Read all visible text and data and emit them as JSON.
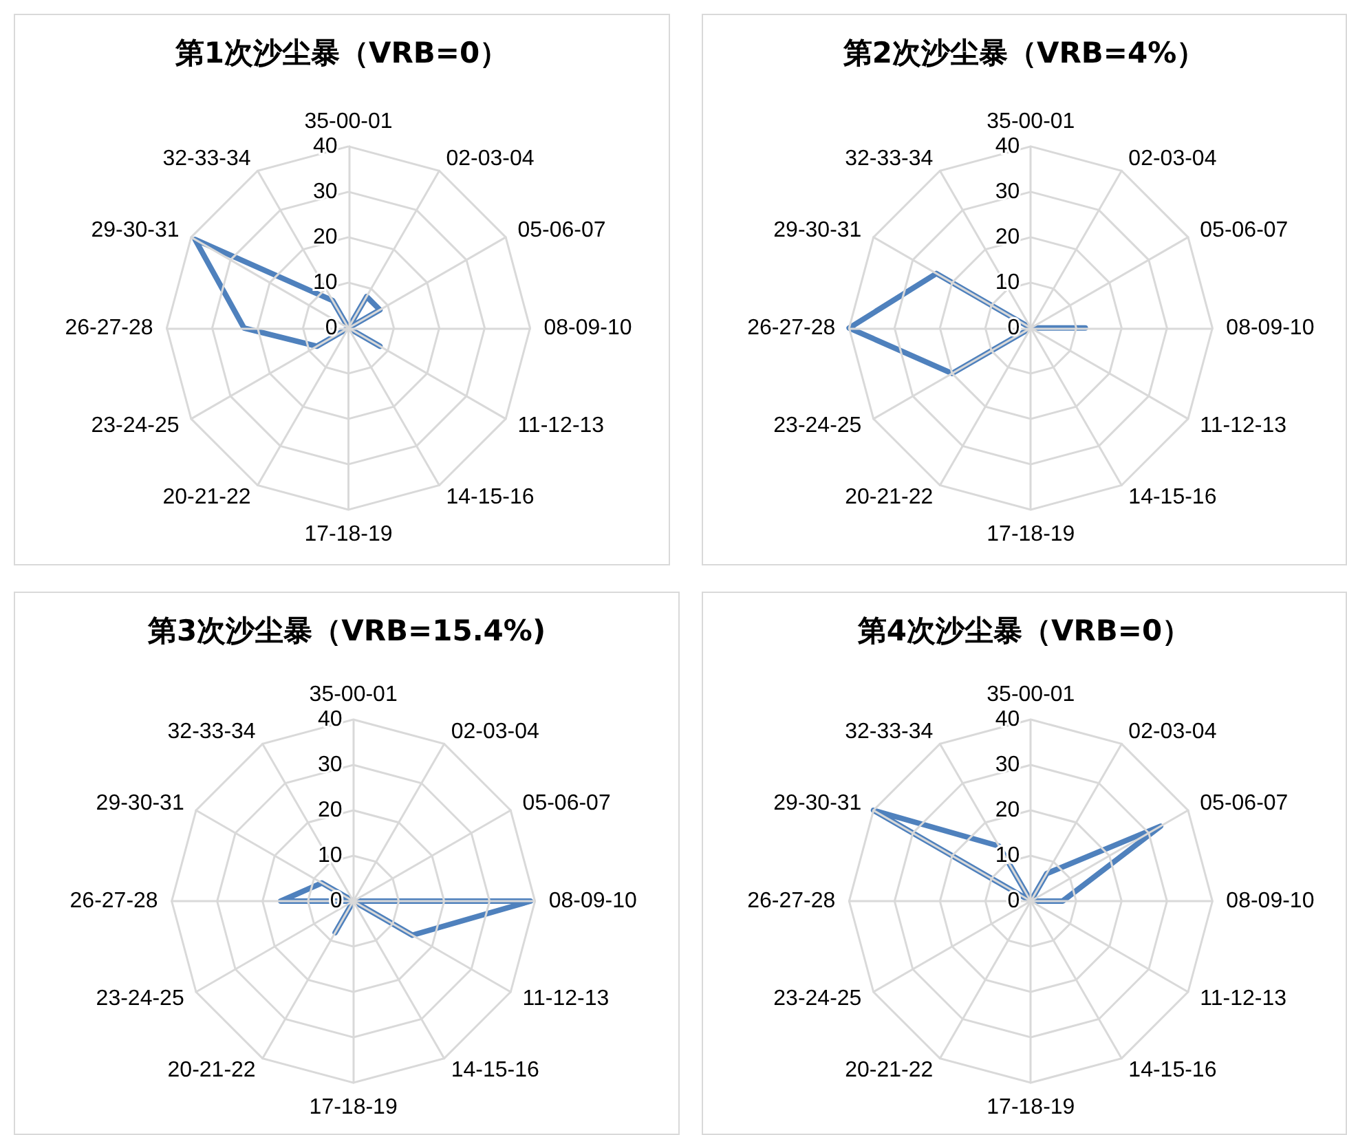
{
  "chart_data": [
    {
      "type": "radar",
      "title": "第1次沙尘暴（VRB=0）",
      "categories": [
        "35-00-01",
        "02-03-04",
        "05-06-07",
        "08-09-10",
        "11-12-13",
        "14-15-16",
        "17-18-19",
        "20-21-22",
        "23-24-25",
        "26-27-28",
        "29-30-31",
        "32-33-34"
      ],
      "series": [
        {
          "color": "#4f81bd",
          "values": [
            0,
            8,
            8,
            0,
            8,
            0,
            0,
            0,
            8,
            23,
            39,
            7
          ]
        }
      ],
      "ylim": [
        0,
        40
      ],
      "yticks": [
        0,
        10,
        20,
        30,
        40
      ],
      "grid": true,
      "marker": "none",
      "line_style": "solid"
    },
    {
      "type": "radar",
      "title": "第2次沙尘暴（VRB=4%）",
      "categories": [
        "35-00-01",
        "02-03-04",
        "05-06-07",
        "08-09-10",
        "11-12-13",
        "14-15-16",
        "17-18-19",
        "20-21-22",
        "23-24-25",
        "26-27-28",
        "29-30-31",
        "32-33-34"
      ],
      "series": [
        {
          "color": "#4f81bd",
          "values": [
            0,
            0,
            0,
            12,
            0,
            0,
            0,
            0,
            20,
            40,
            24,
            0
          ]
        }
      ],
      "ylim": [
        0,
        40
      ],
      "yticks": [
        0,
        10,
        20,
        30,
        40
      ],
      "grid": true,
      "marker": "none",
      "line_style": "solid"
    },
    {
      "type": "radar",
      "title": "第3次沙尘暴（VRB=15.4%)",
      "categories": [
        "35-00-01",
        "02-03-04",
        "05-06-07",
        "08-09-10",
        "11-12-13",
        "14-15-16",
        "17-18-19",
        "20-21-22",
        "23-24-25",
        "26-27-28",
        "29-30-31",
        "32-33-34"
      ],
      "series": [
        {
          "color": "#4f81bd",
          "values": [
            0,
            0,
            0,
            39,
            15,
            0,
            0,
            8,
            0,
            16,
            8,
            0
          ]
        }
      ],
      "ylim": [
        0,
        40
      ],
      "yticks": [
        0,
        10,
        20,
        30,
        40
      ],
      "grid": true,
      "marker": "none",
      "line_style": "solid"
    },
    {
      "type": "radar",
      "title": "第4次沙尘暴（VRB=0）",
      "categories": [
        "35-00-01",
        "02-03-04",
        "05-06-07",
        "08-09-10",
        "11-12-13",
        "14-15-16",
        "17-18-19",
        "20-21-22",
        "23-24-25",
        "26-27-28",
        "29-30-31",
        "32-33-34"
      ],
      "series": [
        {
          "color": "#4f81bd",
          "values": [
            0,
            7,
            33,
            7,
            0,
            0,
            0,
            0,
            0,
            0,
            40,
            14
          ]
        }
      ],
      "ylim": [
        0,
        40
      ],
      "yticks": [
        0,
        10,
        20,
        30,
        40
      ],
      "grid": true,
      "marker": "none",
      "line_style": "solid"
    }
  ]
}
